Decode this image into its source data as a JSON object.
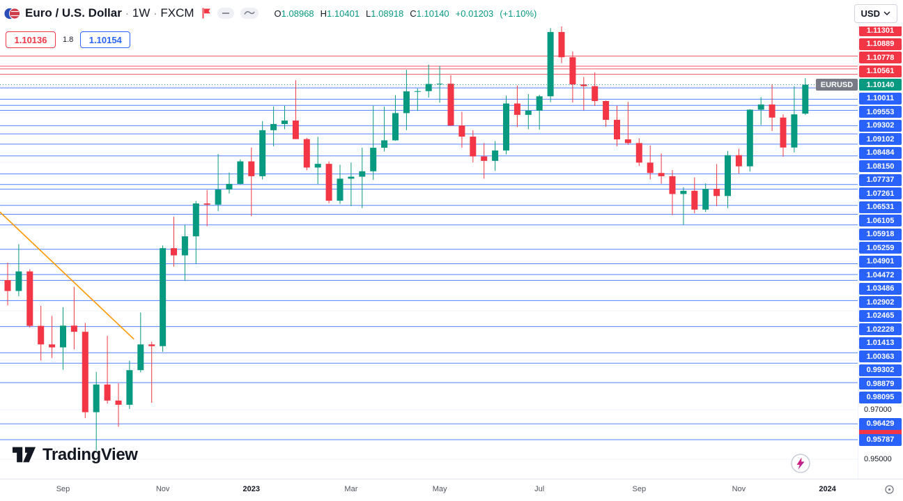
{
  "header": {
    "symbol_title": "Euro / U.S. Dollar",
    "separator": "·",
    "interval": "1W",
    "exchange": "FXCM",
    "ohlc": {
      "o_label": "O",
      "o_value": "1.08968",
      "h_label": "H",
      "h_value": "1.10401",
      "l_label": "L",
      "l_value": "1.08918",
      "c_label": "C",
      "c_value": "1.10140",
      "change": "+0.01203",
      "change_pct": "(+1.10%)"
    },
    "currency_button": "USD"
  },
  "trade_panel": {
    "sell_price": "1.10136",
    "spread": "1.8",
    "buy_price": "1.10154"
  },
  "price_scale": {
    "symbol_tag": "EURUSD",
    "current_price_label": "1.10140"
  },
  "branding": {
    "logo_text": "TradingView"
  },
  "chart_data": {
    "type": "candlestick",
    "title": "Euro / U.S. Dollar 1W FXCM",
    "symbol": "EURUSD",
    "interval": "1W",
    "up_color": "#089981",
    "down_color": "#f23645",
    "line_blue": "#2962ff",
    "line_red": "#f23645",
    "current_price": 1.1014,
    "y_ticks": [
      {
        "price": 0.97,
        "text": "0.97000"
      },
      {
        "price": 0.95,
        "text": "0.95000"
      }
    ],
    "levels": {
      "red": [
        1.11301,
        1.10889,
        1.10778,
        1.10561
      ],
      "blue": [
        1.10011,
        1.09553,
        1.09302,
        1.09102,
        1.08484,
        1.0815,
        1.07737,
        1.07261,
        1.06531,
        1.06105,
        1.05918,
        1.05259,
        1.04901,
        1.04472,
        1.03486,
        1.02902,
        1.02465,
        1.02228,
        1.01413,
        1.00363,
        0.99302,
        0.98879,
        0.98095,
        0.96429,
        0.95787
      ]
    },
    "trendline": {
      "start_index": -1,
      "start_price": 1.0512,
      "end_index": 11.4,
      "end_price": 0.9985,
      "color": "#ff9800"
    },
    "x_axis_labels": [
      {
        "text": "Sep",
        "index": 5,
        "bold": false
      },
      {
        "text": "Nov",
        "index": 14,
        "bold": false
      },
      {
        "text": "2023",
        "index": 22,
        "bold": true
      },
      {
        "text": "Mar",
        "index": 31,
        "bold": false
      },
      {
        "text": "May",
        "index": 39,
        "bold": false
      },
      {
        "text": "Jul",
        "index": 48,
        "bold": false
      },
      {
        "text": "Sep",
        "index": 57,
        "bold": false
      },
      {
        "text": "Nov",
        "index": 66,
        "bold": false
      },
      {
        "text": "2024",
        "index": 74,
        "bold": true
      }
    ],
    "candles": [
      [
        1.0224,
        1.0294,
        1.0122,
        1.018
      ],
      [
        1.018,
        1.0369,
        1.0159,
        1.0259
      ],
      [
        1.0259,
        1.0268,
        1.0032,
        1.0039
      ],
      [
        1.0039,
        1.012,
        0.9899,
        0.9964
      ],
      [
        0.9964,
        1.0079,
        0.9909,
        0.9952
      ],
      [
        0.9952,
        1.0114,
        0.9862,
        1.004
      ],
      [
        1.004,
        1.0197,
        0.9944,
        1.0015
      ],
      [
        1.0015,
        1.0051,
        0.9666,
        0.969
      ],
      [
        0.969,
        0.9853,
        0.9535,
        0.9802
      ],
      [
        0.9802,
        0.9999,
        0.9725,
        0.9737
      ],
      [
        0.9737,
        0.9807,
        0.9631,
        0.972
      ],
      [
        0.972,
        0.9898,
        0.9703,
        0.986
      ],
      [
        0.986,
        1.0093,
        0.9851,
        0.9964
      ],
      [
        0.9964,
        0.9975,
        0.9728,
        0.9957
      ],
      [
        0.9957,
        1.0364,
        0.9934,
        1.0353
      ],
      [
        1.0353,
        1.048,
        1.0279,
        1.0324
      ],
      [
        1.0324,
        1.0448,
        1.0221,
        1.0401
      ],
      [
        1.0401,
        1.0544,
        1.0289,
        1.0534
      ],
      [
        1.0534,
        1.0588,
        1.0442,
        1.0529
      ],
      [
        1.0529,
        1.0734,
        1.0503,
        1.059
      ],
      [
        1.059,
        1.0659,
        1.0574,
        1.0613
      ],
      [
        1.0613,
        1.0712,
        1.061,
        1.0704
      ],
      [
        1.0704,
        1.076,
        1.0482,
        1.0644
      ],
      [
        1.0644,
        1.0867,
        1.0631,
        1.083
      ],
      [
        1.083,
        1.0926,
        1.0765,
        1.0855
      ],
      [
        1.0855,
        1.0929,
        1.0834,
        1.0869
      ],
      [
        1.0869,
        1.1032,
        1.0794,
        1.0794
      ],
      [
        1.0794,
        1.0799,
        1.0668,
        1.0679
      ],
      [
        1.0679,
        1.0803,
        1.0612,
        1.0694
      ],
      [
        1.0694,
        1.0704,
        1.0535,
        1.0545
      ],
      [
        1.0545,
        1.069,
        1.0532,
        1.0634
      ],
      [
        1.0634,
        1.0699,
        1.0523,
        1.0642
      ],
      [
        1.0642,
        1.0759,
        1.0515,
        1.0664
      ],
      [
        1.0664,
        1.0929,
        1.0629,
        1.0759
      ],
      [
        1.0759,
        1.0925,
        1.0744,
        1.0789
      ],
      [
        1.0789,
        1.0972,
        1.0787,
        1.0899
      ],
      [
        1.0899,
        1.1074,
        1.083,
        1.0987
      ],
      [
        1.0987,
        1.0999,
        1.0908,
        1.0988
      ],
      [
        1.0988,
        1.1095,
        1.0962,
        1.1017
      ],
      [
        1.1017,
        1.109,
        1.0941,
        1.1018
      ],
      [
        1.1018,
        1.1052,
        1.0847,
        1.0849
      ],
      [
        1.0849,
        1.0904,
        1.0759,
        1.0804
      ],
      [
        1.0804,
        1.083,
        1.07,
        1.0724
      ],
      [
        1.0724,
        1.0778,
        1.0634,
        1.0706
      ],
      [
        1.0706,
        1.0786,
        1.0666,
        1.0748
      ],
      [
        1.0748,
        1.0969,
        1.0732,
        1.0938
      ],
      [
        1.0938,
        1.1011,
        1.0843,
        1.0892
      ],
      [
        1.0892,
        1.0976,
        1.0834,
        1.0909
      ],
      [
        1.0909,
        1.0973,
        1.0832,
        1.0967
      ],
      [
        1.0967,
        1.1243,
        1.0943,
        1.1227
      ],
      [
        1.1227,
        1.1274,
        1.1101,
        1.1125
      ],
      [
        1.1125,
        1.1149,
        1.0942,
        1.1015
      ],
      [
        1.1015,
        1.1045,
        1.0911,
        1.1008
      ],
      [
        1.1008,
        1.1064,
        1.0928,
        1.0948
      ],
      [
        1.0948,
        1.095,
        1.0844,
        1.0872
      ],
      [
        1.0872,
        1.0929,
        1.0765,
        1.0793
      ],
      [
        1.0793,
        1.0944,
        1.0771,
        1.0778
      ],
      [
        1.0778,
        1.0797,
        1.0685,
        1.0699
      ],
      [
        1.0699,
        1.0768,
        1.0631,
        1.0657
      ],
      [
        1.0657,
        1.0736,
        1.0614,
        1.0644
      ],
      [
        1.0644,
        1.0669,
        1.0487,
        1.0572
      ],
      [
        1.0572,
        1.0599,
        1.0447,
        1.0585
      ],
      [
        1.0585,
        1.0639,
        1.0494,
        1.0509
      ],
      [
        1.0509,
        1.0615,
        1.0499,
        1.0593
      ],
      [
        1.0593,
        1.0693,
        1.0523,
        1.0564
      ],
      [
        1.0564,
        1.0746,
        1.0515,
        1.0729
      ],
      [
        1.0729,
        1.0755,
        1.0655,
        1.0684
      ],
      [
        1.0684,
        1.0915,
        1.0663,
        1.0913
      ],
      [
        1.0913,
        1.0964,
        1.0851,
        1.0934
      ],
      [
        1.0934,
        1.1016,
        1.0827,
        1.0881
      ],
      [
        1.0881,
        1.0894,
        1.0723,
        1.076
      ],
      [
        1.076,
        1.1008,
        1.074,
        1.0894
      ],
      [
        1.08968,
        1.10401,
        1.08918,
        1.1014
      ]
    ]
  }
}
